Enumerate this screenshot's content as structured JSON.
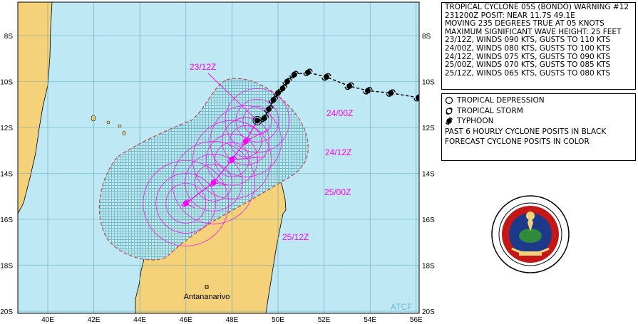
{
  "warning": {
    "lines": [
      "TROPICAL CYCLONE 05S (BONDO) WARNING #12",
      "231200Z POSIT: NEAR 11.7S 49.1E",
      "MOVING 235 DEGREES TRUE AT 05 KNOTS",
      "MAXIMUM SIGNIFICANT WAVE HEIGHT: 25 FEET",
      "23/12Z, WINDS 090 KTS, GUSTS TO 110 KTS",
      "24/00Z, WINDS 080 KTS, GUSTS TO 100 KTS",
      "24/12Z, WINDS 075 KTS, GUSTS TO 090 KTS",
      "25/00Z, WINDS 070 KTS, GUSTS TO 085 KTS",
      "25/12Z, WINDS 065 KTS, GUSTS TO 080 KTS"
    ]
  },
  "legend": {
    "items": [
      {
        "label": "TROPICAL DEPRESSION",
        "icon": "open-circle-icon"
      },
      {
        "label": "TROPICAL STORM",
        "icon": "storm-symbol-icon"
      },
      {
        "label": "TYPHOON",
        "icon": "typhoon-symbol-icon"
      }
    ],
    "note1": "PAST 6 HOURLY CYCLONE POSITS IN BLACK",
    "note2": "FORECAST CYCLONE POSITS IN COLOR"
  },
  "map": {
    "lon_labels": [
      "40E",
      "42E",
      "44E",
      "46E",
      "48E",
      "50E",
      "52E",
      "54E",
      "56E"
    ],
    "lat_labels": [
      "8S",
      "10S",
      "12S",
      "14S",
      "16S",
      "18S",
      "20S"
    ],
    "city": "Antananarivo",
    "credit": "ATCF",
    "forecast_labels": [
      "23/12Z",
      "24/00Z",
      "24/12Z",
      "25/00Z",
      "25/12Z"
    ],
    "colors": {
      "ocean": "#bfe8f5",
      "land": "#f5d27a",
      "forecast": "#ff00ff",
      "grid": "#6fb8c4",
      "danger": "#b85050"
    }
  },
  "track": {
    "past": [
      {
        "lon": 56.1,
        "lat": -10.7
      },
      {
        "lon": 54.9,
        "lat": -10.5
      },
      {
        "lon": 53.9,
        "lat": -10.4
      },
      {
        "lon": 53.1,
        "lat": -10.2
      },
      {
        "lon": 52.1,
        "lat": -9.8
      },
      {
        "lon": 51.3,
        "lat": -9.6
      },
      {
        "lon": 50.7,
        "lat": -9.7
      },
      {
        "lon": 50.4,
        "lat": -10.0
      },
      {
        "lon": 50.2,
        "lat": -10.3
      },
      {
        "lon": 50.0,
        "lat": -10.5
      },
      {
        "lon": 49.8,
        "lat": -10.8
      },
      {
        "lon": 49.6,
        "lat": -11.2
      },
      {
        "lon": 49.4,
        "lat": -11.6
      }
    ],
    "forecast": [
      {
        "time": "23/12Z",
        "lon": 49.1,
        "lat": -11.7
      },
      {
        "time": "24/00Z",
        "lon": 48.6,
        "lat": -12.6
      },
      {
        "time": "24/12Z",
        "lon": 48.0,
        "lat": -13.4
      },
      {
        "time": "25/00Z",
        "lon": 47.2,
        "lat": -14.4
      },
      {
        "time": "25/12Z",
        "lon": 46.0,
        "lat": -15.3
      }
    ]
  }
}
